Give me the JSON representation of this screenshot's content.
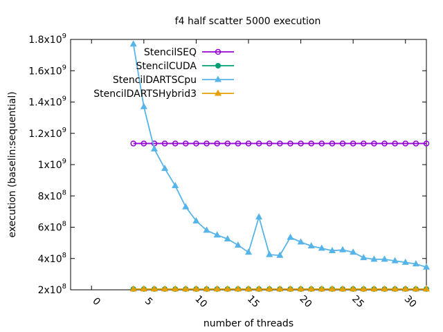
{
  "chart_data": {
    "type": "line",
    "title": "f4 half scatter 5000 execution",
    "xlabel": "number of threads",
    "ylabel": "execution (baselin:sequential)",
    "xlim": [
      -2,
      32
    ],
    "ylim": [
      200000000,
      1800000000
    ],
    "x_ticks": [
      0,
      5,
      10,
      15,
      20,
      25,
      30
    ],
    "x_tick_labels": [
      "0",
      "5",
      "10",
      "15",
      "20",
      "25",
      "30"
    ],
    "y_ticks": [
      {
        "value": 200000000,
        "mantissa": "2x10",
        "exp": "8"
      },
      {
        "value": 400000000,
        "mantissa": "4x10",
        "exp": "8"
      },
      {
        "value": 600000000,
        "mantissa": "6x10",
        "exp": "8"
      },
      {
        "value": 800000000,
        "mantissa": "8x10",
        "exp": "8"
      },
      {
        "value": 1000000000,
        "mantissa": "1x10",
        "exp": "9"
      },
      {
        "value": 1200000000,
        "mantissa": "1.2x10",
        "exp": "9"
      },
      {
        "value": 1400000000,
        "mantissa": "1.4x10",
        "exp": "9"
      },
      {
        "value": 1600000000,
        "mantissa": "1.6x10",
        "exp": "9"
      },
      {
        "value": 1800000000,
        "mantissa": "1.8x10",
        "exp": "9"
      }
    ],
    "grid": false,
    "legend_position": "top-right",
    "x": [
      4,
      5,
      6,
      7,
      8,
      9,
      10,
      11,
      12,
      13,
      14,
      15,
      16,
      17,
      18,
      19,
      20,
      21,
      22,
      23,
      24,
      25,
      26,
      27,
      28,
      29,
      30,
      31,
      32
    ],
    "series": [
      {
        "name": "StencilSEQ",
        "color": "#9400d3",
        "marker": "circle-open",
        "values": [
          1135000000,
          1135000000,
          1135000000,
          1135000000,
          1135000000,
          1135000000,
          1135000000,
          1135000000,
          1135000000,
          1135000000,
          1135000000,
          1135000000,
          1135000000,
          1135000000,
          1135000000,
          1135000000,
          1135000000,
          1135000000,
          1135000000,
          1135000000,
          1135000000,
          1135000000,
          1135000000,
          1135000000,
          1135000000,
          1135000000,
          1135000000,
          1135000000,
          1135000000
        ]
      },
      {
        "name": "StencilCUDA",
        "color": "#009e73",
        "marker": "circle",
        "values": [
          205000000,
          205000000,
          205000000,
          205000000,
          205000000,
          205000000,
          205000000,
          205000000,
          205000000,
          205000000,
          205000000,
          205000000,
          205000000,
          205000000,
          205000000,
          205000000,
          205000000,
          205000000,
          205000000,
          205000000,
          205000000,
          205000000,
          205000000,
          205000000,
          205000000,
          205000000,
          205000000,
          205000000,
          205000000
        ]
      },
      {
        "name": "StencilDARTSCpu",
        "color": "#56b4e9",
        "marker": "triangle",
        "values": [
          1770000000,
          1370000000,
          1100000000,
          975000000,
          865000000,
          730000000,
          640000000,
          580000000,
          550000000,
          525000000,
          485000000,
          440000000,
          665000000,
          425000000,
          420000000,
          535000000,
          505000000,
          480000000,
          465000000,
          450000000,
          455000000,
          440000000,
          405000000,
          395000000,
          395000000,
          385000000,
          375000000,
          365000000,
          345000000
        ]
      },
      {
        "name": "StencilDARTSHybrid3",
        "color": "#e69f00",
        "marker": "triangle",
        "values": [
          205000000,
          205000000,
          205000000,
          205000000,
          205000000,
          205000000,
          205000000,
          205000000,
          205000000,
          205000000,
          205000000,
          205000000,
          205000000,
          205000000,
          205000000,
          205000000,
          205000000,
          205000000,
          205000000,
          205000000,
          205000000,
          205000000,
          205000000,
          205000000,
          205000000,
          205000000,
          205000000,
          205000000,
          205000000
        ]
      }
    ]
  }
}
